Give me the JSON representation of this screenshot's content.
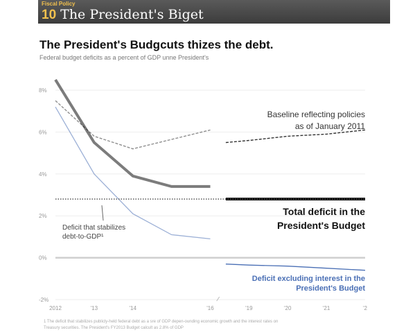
{
  "header": {
    "kicker": "Fiscal Policy",
    "number": "10",
    "title": "The President's Biget"
  },
  "chart_data": {
    "type": "line",
    "title": "The President's Budgcuts thizes the debt.",
    "subtitle": "Federal budget deficits as a percent of GDP unne President's",
    "xlabel": "",
    "ylabel": "",
    "ylim": [
      -2,
      9
    ],
    "y_ticks": [
      {
        "value": 8,
        "label": "8%"
      },
      {
        "value": 6,
        "label": "6%"
      },
      {
        "value": 4,
        "label": "4%"
      },
      {
        "value": 2,
        "label": "2%"
      },
      {
        "value": 0,
        "label": "0%"
      },
      {
        "value": -2,
        "label": "-2%"
      }
    ],
    "x_ticks": [
      {
        "value": 2012,
        "label": "2012"
      },
      {
        "value": 2013,
        "label": "'13"
      },
      {
        "value": 2014,
        "label": "'14"
      },
      {
        "value": 2016,
        "label": "'16"
      },
      {
        "value": 2017,
        "label": "'19"
      },
      {
        "value": 2018,
        "label": "'20"
      },
      {
        "value": 2019,
        "label": "'21"
      },
      {
        "value": 2020,
        "label": "'2"
      }
    ],
    "grid": true,
    "series": [
      {
        "name": "Baseline reflecting policies as of January 2011",
        "color": "#333333",
        "style": "dashed",
        "x": [
          2012,
          2013,
          2014,
          2016,
          2016.4,
          2017,
          2018,
          2019,
          2020
        ],
        "values": [
          7.5,
          5.8,
          5.2,
          6.1,
          5.5,
          5.6,
          5.8,
          5.9,
          6.1
        ]
      },
      {
        "name": "Total deficit in the President's Budget",
        "color": "#111111",
        "style": "solid-thick",
        "x": [
          2012,
          2013,
          2014,
          2015,
          2016,
          2016.4,
          2017,
          2018,
          2019,
          2020
        ],
        "values": [
          8.5,
          5.5,
          3.9,
          3.4,
          3.4,
          2.8,
          2.8,
          2.8,
          2.8,
          2.8
        ]
      },
      {
        "name": "Deficit excluding interest in the President's Budget",
        "color": "#4a6fb5",
        "style": "solid",
        "x": [
          2012,
          2013,
          2014,
          2015,
          2016,
          2016.4,
          2017,
          2018,
          2019,
          2020
        ],
        "values": [
          7.2,
          4.0,
          2.1,
          1.1,
          0.9,
          -0.3,
          -0.35,
          -0.4,
          -0.5,
          -0.6
        ]
      },
      {
        "name": "Deficit that stabilizes debt-to-GDP¹",
        "color": "#555555",
        "style": "dotted",
        "x": [
          2012,
          2020
        ],
        "values": [
          2.8,
          2.8
        ]
      }
    ],
    "annotations": {
      "baseline_line1": "Baseline reflecting policies",
      "baseline_line2": "as of January 2011",
      "total_line1": "Total deficit in the",
      "total_line2": "President's Budget",
      "stab_line1": "Deficit that stabilizes",
      "stab_line2": "debt-to-GDP¹",
      "excl_line1": "Deficit excluding interest in the",
      "excl_line2": "President's Budget"
    }
  },
  "footnote": {
    "line1": "1 The deficit that stabilizes publicly-held federal debt as a sre of GDP depen-ounding economic growth and the interest rates on",
    "line2": "Treasury securities. The President's FY2013 Budget calcult as 2.8% of GDP"
  }
}
